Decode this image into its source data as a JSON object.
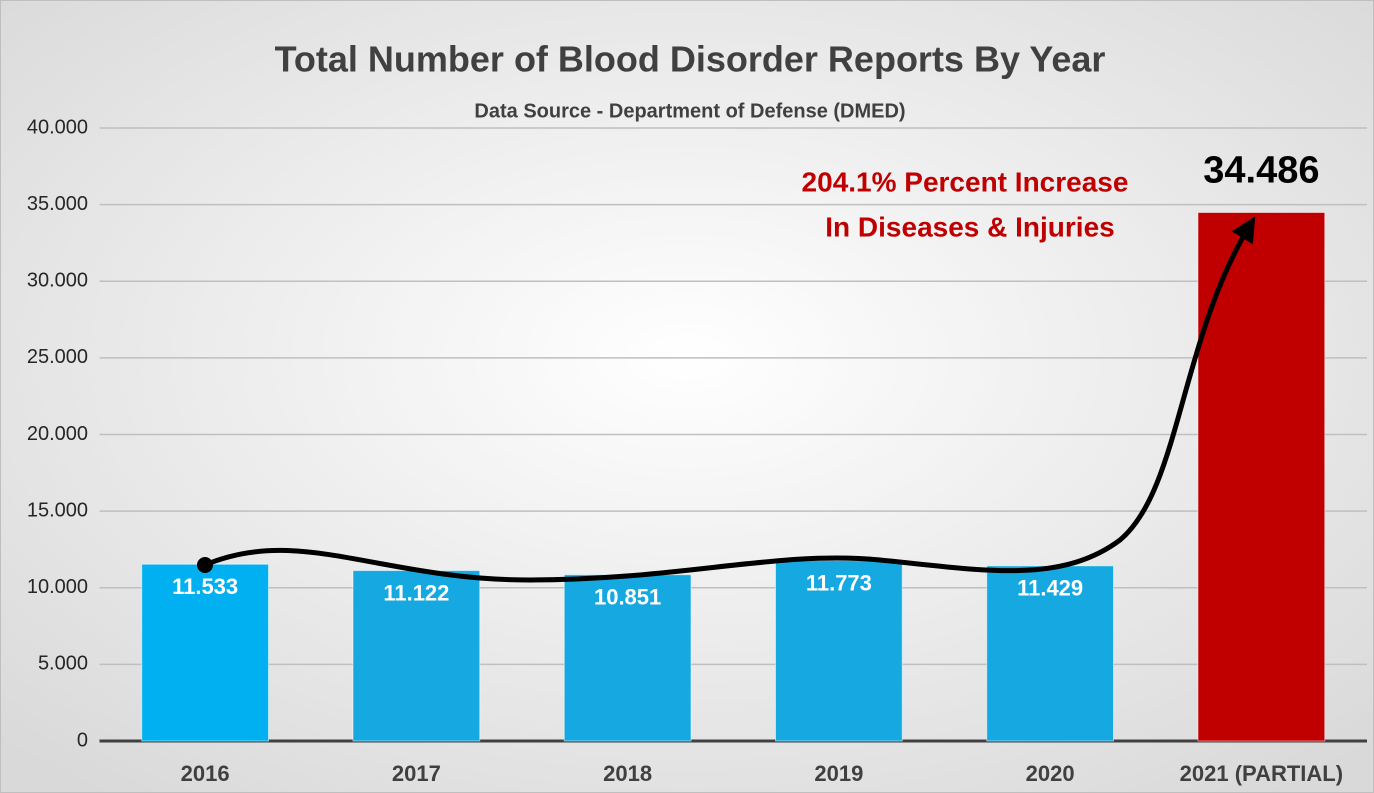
{
  "chart_data": {
    "type": "bar",
    "title": "Total Number of Blood Disorder Reports By Year",
    "subtitle": "Data Source - Department of Defense (DMED)",
    "annotations": [
      "204.1% Percent Increase",
      "In Diseases & Injuries"
    ],
    "categories": [
      "2016",
      "2017",
      "2018",
      "2019",
      "2020",
      "2021 (PARTIAL)"
    ],
    "values": [
      11533,
      11122,
      10851,
      11773,
      11429,
      34486
    ],
    "value_labels": [
      "11.533",
      "11.122",
      "10.851",
      "11.773",
      "11.429",
      "34.486"
    ],
    "colors": [
      "#00b0f0",
      "#16a9e1",
      "#16a9e1",
      "#16a9e1",
      "#16a9e1",
      "#c00000"
    ],
    "ylim": [
      0,
      40000
    ],
    "yticks": [
      0,
      {
        "value": 5000,
        "label": "5.000"
      },
      {
        "value": 10000,
        "label": "10.000"
      },
      {
        "value": 15000,
        "label": "15.000"
      },
      {
        "value": 20000,
        "label": "20.000"
      },
      {
        "value": 25000,
        "label": "25.000"
      },
      {
        "value": 30000,
        "label": "30.000"
      },
      {
        "value": 35000,
        "label": "35.000"
      },
      {
        "value": 40000,
        "label": "40.000"
      }
    ],
    "grid": true
  }
}
